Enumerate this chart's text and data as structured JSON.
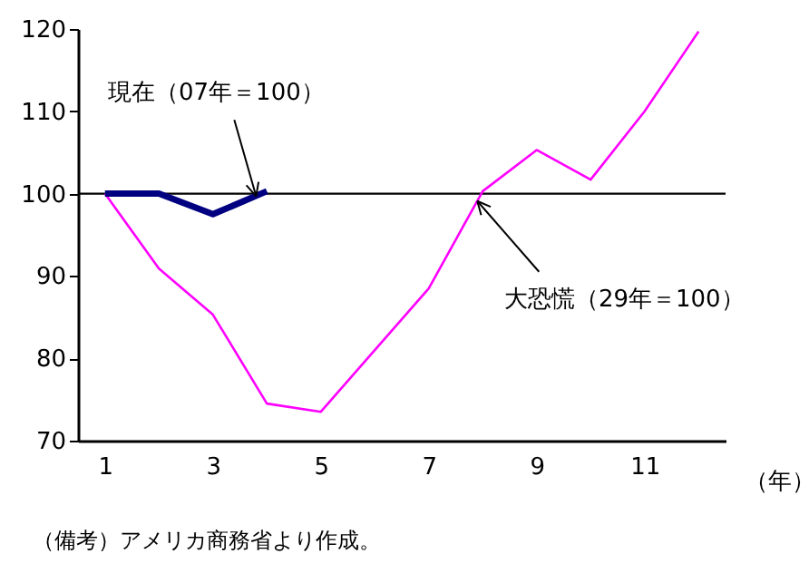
{
  "chart_data": {
    "type": "line",
    "x": [
      1,
      2,
      3,
      4,
      5,
      6,
      7,
      8,
      9,
      10,
      11,
      12
    ],
    "xlabel": "（年）",
    "series": [
      {
        "color": "#ff00ff",
        "values": [
          100,
          90.9,
          85.3,
          74.5,
          73.5,
          81,
          88.5,
          100.3,
          105.3,
          101.7,
          110,
          119.7
        ]
      },
      {
        "color": "#000080",
        "values": [
          100,
          100,
          97.5,
          100.3,
          null,
          null,
          null,
          null,
          null,
          null,
          null,
          null
        ]
      }
    ],
    "xlim": [
      0.5,
      12.5
    ],
    "xticks": [
      1,
      3,
      5,
      7,
      9,
      11
    ],
    "ylim": [
      70,
      120
    ],
    "yticks": [
      70,
      80,
      90,
      100,
      110,
      120
    ],
    "ref_lines": [
      {
        "axis": "y",
        "value": 100,
        "color": "#000000"
      }
    ],
    "annotations": [
      {
        "text": "現在（07年＝100）",
        "x": 3.8,
        "y": 99.7
      },
      {
        "text": "大恐慌（29年＝100）",
        "x": 7.9,
        "y": 99.1
      },
      "（備考）アメリカ商務省より作成。"
    ],
    "grid": false
  }
}
